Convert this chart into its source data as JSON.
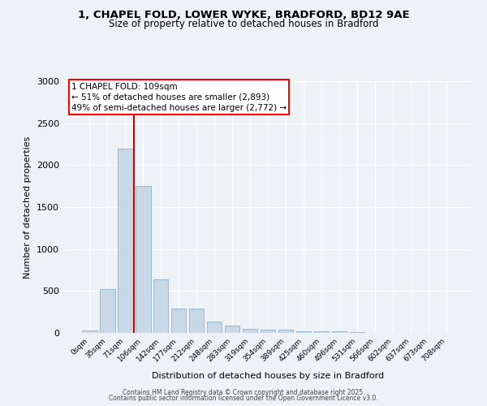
{
  "title": "1, CHAPEL FOLD, LOWER WYKE, BRADFORD, BD12 9AE",
  "subtitle": "Size of property relative to detached houses in Bradford",
  "xlabel": "Distribution of detached houses by size in Bradford",
  "ylabel": "Number of detached properties",
  "bar_color": "#c8d8e8",
  "bar_edge_color": "#8ab4cc",
  "background_color": "#eef2f7",
  "grid_color": "#ffffff",
  "categories": [
    "0sqm",
    "35sqm",
    "71sqm",
    "106sqm",
    "142sqm",
    "177sqm",
    "212sqm",
    "248sqm",
    "283sqm",
    "319sqm",
    "354sqm",
    "389sqm",
    "425sqm",
    "460sqm",
    "496sqm",
    "531sqm",
    "566sqm",
    "602sqm",
    "637sqm",
    "673sqm",
    "708sqm"
  ],
  "values": [
    25,
    525,
    2200,
    1750,
    640,
    290,
    290,
    140,
    90,
    50,
    35,
    35,
    20,
    20,
    18,
    5,
    2,
    2,
    2,
    2,
    2
  ],
  "vline_pos": 2.5,
  "vline_color": "#cc0000",
  "ylim": [
    0,
    3000
  ],
  "yticks": [
    0,
    500,
    1000,
    1500,
    2000,
    2500,
    3000
  ],
  "annotation_text": "1 CHAPEL FOLD: 109sqm\n← 51% of detached houses are smaller (2,893)\n49% of semi-detached houses are larger (2,772) →",
  "footer_line1": "Contains HM Land Registry data © Crown copyright and database right 2025.",
  "footer_line2": "Contains public sector information licensed under the Open Government Licence v3.0."
}
